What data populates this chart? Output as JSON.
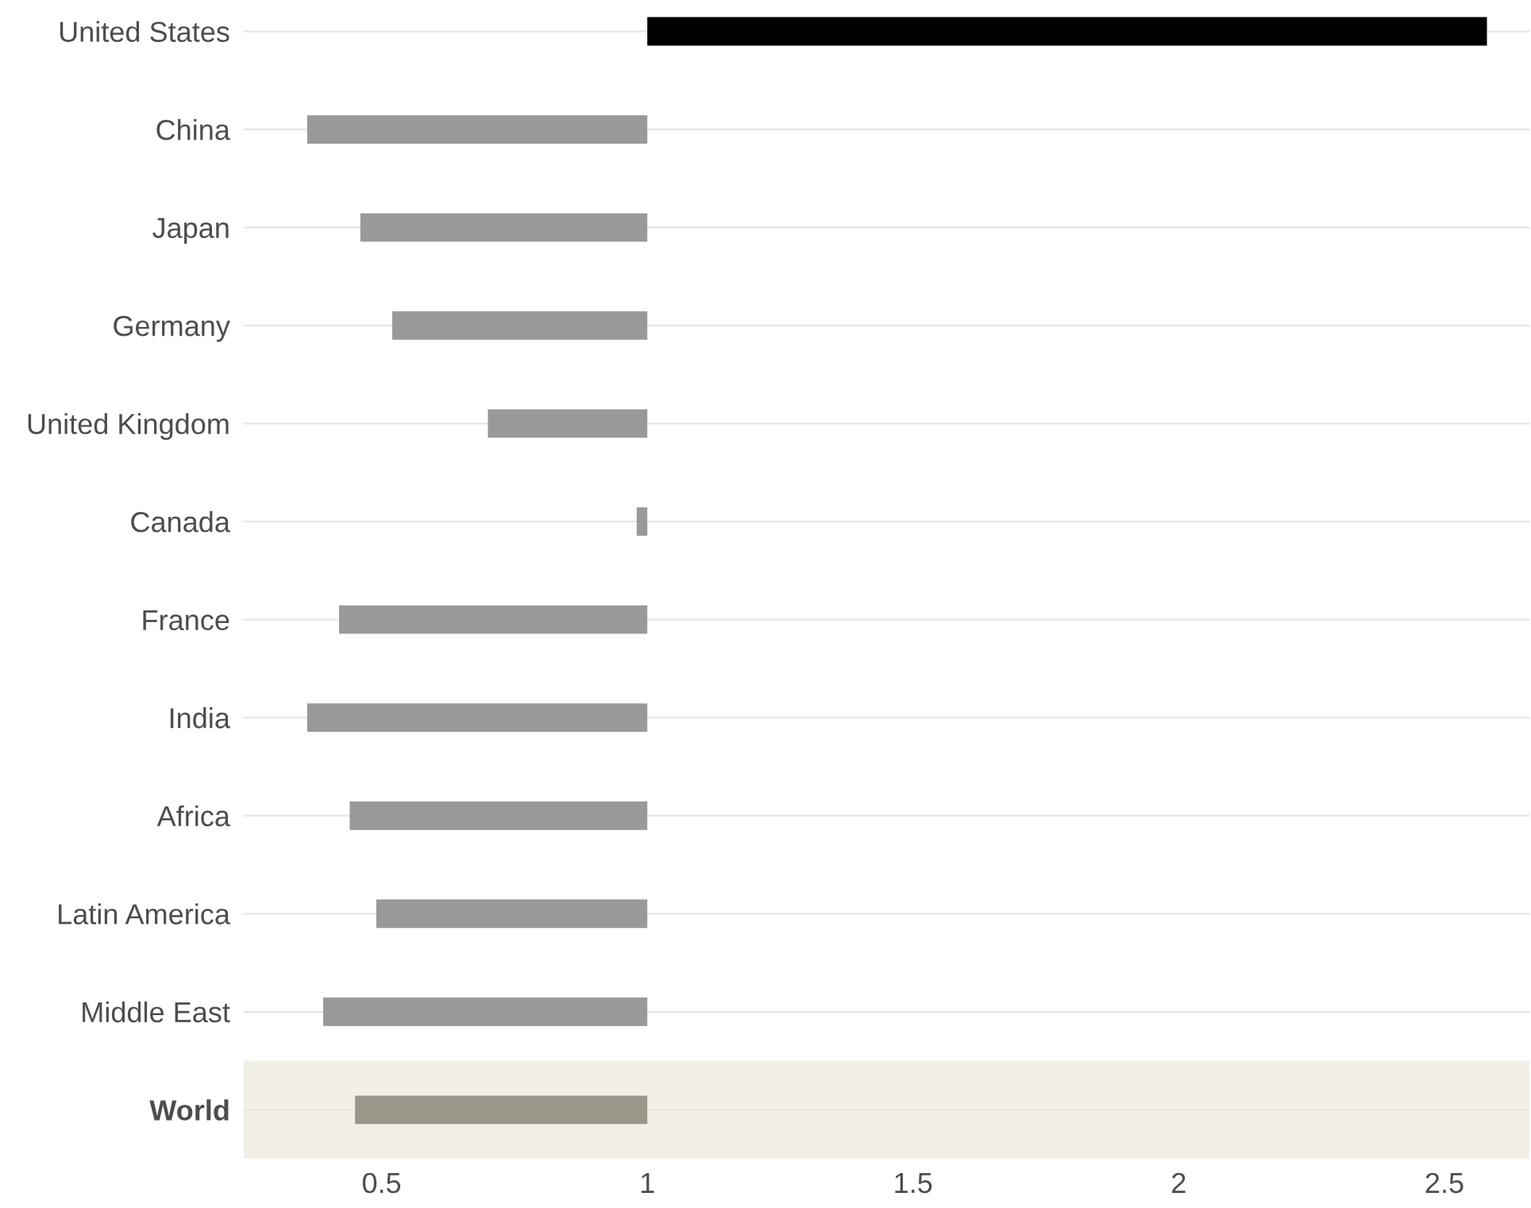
{
  "chart_data": {
    "type": "bar",
    "orientation": "horizontal",
    "categories": [
      "United States",
      "China",
      "Japan",
      "Germany",
      "United Kingdom",
      "Canada",
      "France",
      "India",
      "Africa",
      "Latin America",
      "Middle East",
      "World"
    ],
    "base": [
      1,
      1,
      1,
      1,
      1,
      1,
      1,
      1,
      1,
      1,
      1,
      1
    ],
    "values": [
      1.58,
      -0.64,
      -0.54,
      -0.48,
      -0.3,
      -0.02,
      -0.58,
      -0.64,
      -0.56,
      -0.51,
      -0.61,
      -0.55
    ],
    "colors": [
      "#000000",
      "#999999",
      "#999999",
      "#999999",
      "#999999",
      "#999999",
      "#999999",
      "#999999",
      "#999999",
      "#999999",
      "#999999",
      "#98978a"
    ],
    "xlim": [
      0.24,
      2.66
    ],
    "xticks": [
      0.5,
      1,
      1.5,
      2,
      2.5
    ],
    "bands": [
      {
        "axis": "y",
        "from": "World",
        "to": "World",
        "color": "#f2f0e6"
      }
    ],
    "grid": "y"
  }
}
